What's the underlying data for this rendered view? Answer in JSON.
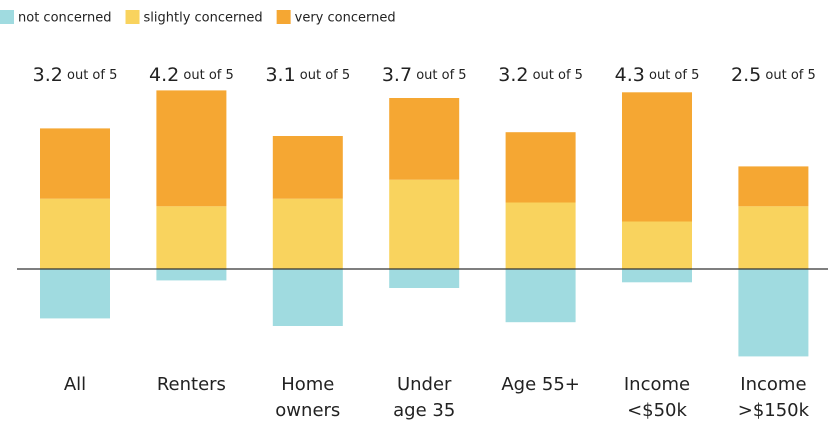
{
  "chart_data": {
    "type": "diverging-stacked-bar",
    "categories": [
      [
        "All"
      ],
      [
        "Renters"
      ],
      [
        "Home",
        "owners"
      ],
      [
        "Under",
        "age 35"
      ],
      [
        "Age 55+"
      ],
      [
        "Income",
        "<$50k"
      ],
      [
        "Income",
        ">$150k"
      ]
    ],
    "series": [
      {
        "name": "not concerned",
        "color": "#a0dbe0",
        "direction": "down",
        "values": [
          26,
          6,
          30,
          10,
          28,
          7,
          46
        ]
      },
      {
        "name": "slightly concerned",
        "color": "#f9d35e",
        "direction": "up",
        "values": [
          37,
          33,
          37,
          47,
          35,
          25,
          33
        ]
      },
      {
        "name": "very concerned",
        "color": "#f5a733",
        "direction": "up",
        "values": [
          37,
          61,
          33,
          43,
          37,
          68,
          21
        ]
      }
    ],
    "scores": [
      "3.2",
      "4.2",
      "3.1",
      "3.7",
      "3.2",
      "4.3",
      "2.5"
    ],
    "score_suffix": "out of 5"
  }
}
